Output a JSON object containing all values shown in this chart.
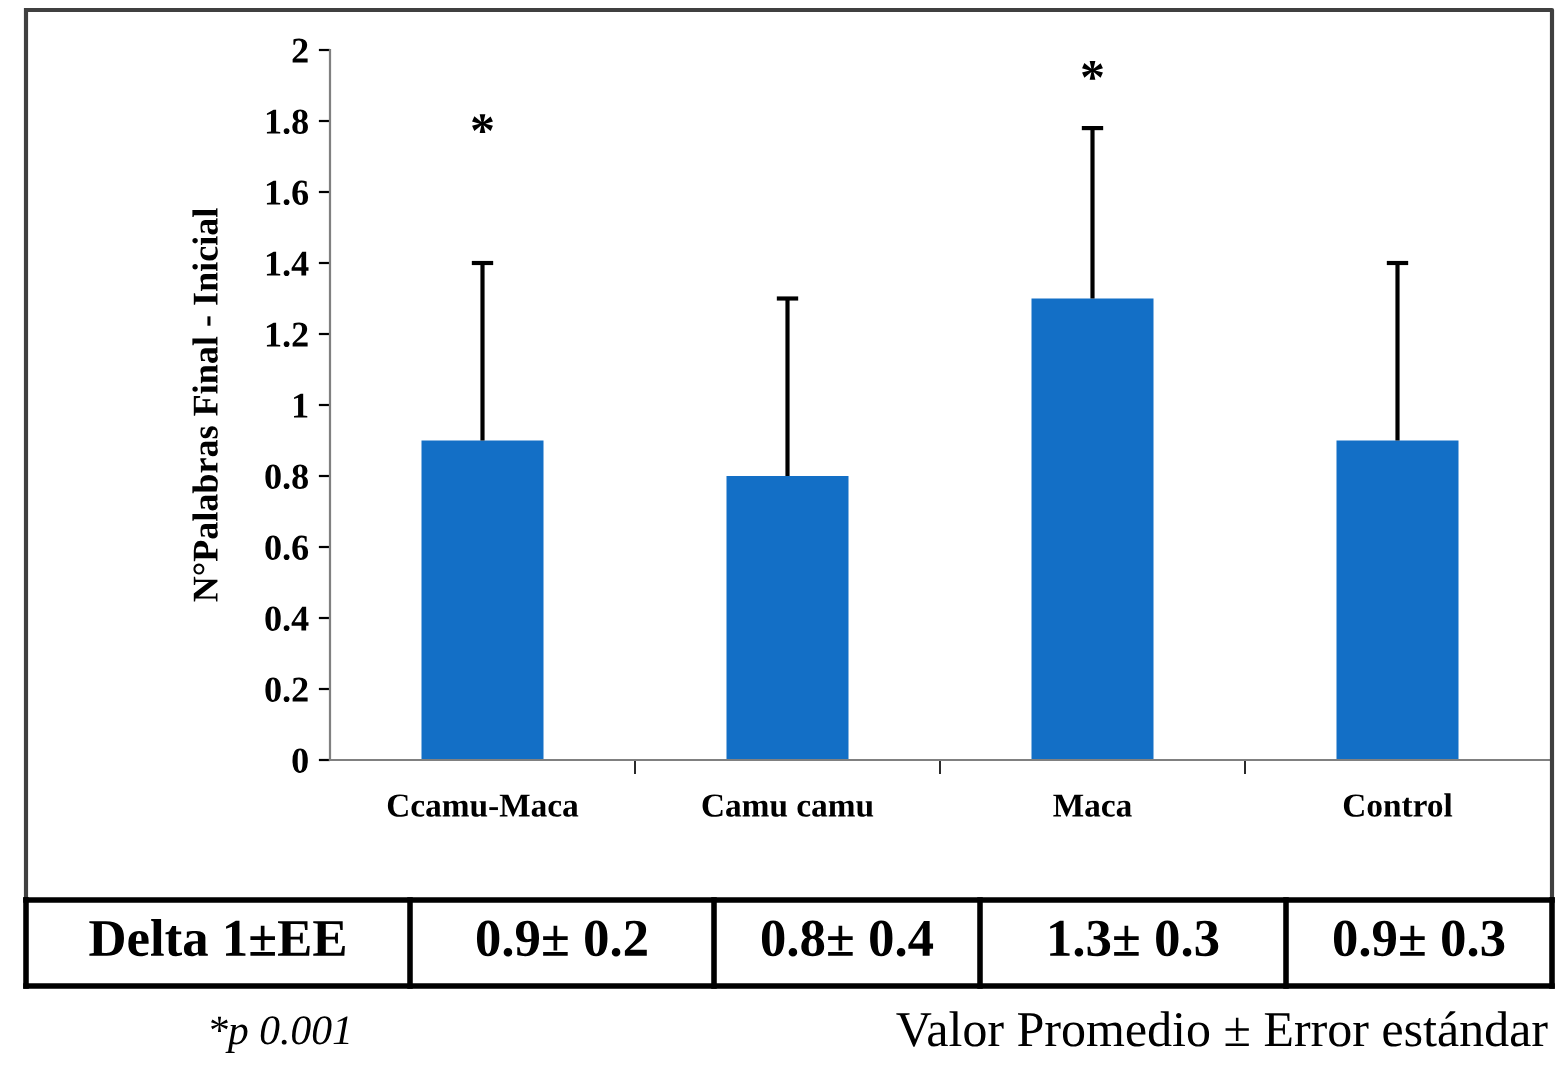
{
  "chart_data": {
    "type": "bar",
    "ylabel": "N°Palabras Final - Inicial",
    "categories": [
      "Ccamu-Maca",
      "Camu camu",
      "Maca",
      "Control"
    ],
    "values": [
      0.9,
      0.8,
      1.3,
      0.9
    ],
    "color": "#136fc6",
    "errors": [
      [
        0.9,
        1.4
      ],
      [
        0.8,
        1.3
      ],
      [
        1.3,
        1.78
      ],
      [
        0.9,
        1.4
      ]
    ],
    "value_labels": [
      "0.9± 0.2",
      "0.8± 0.4",
      "1.3± 0.3",
      "0.9± 0.3"
    ],
    "ylim": [
      0,
      2
    ],
    "yticks": [
      0,
      0.2,
      0.4,
      0.6,
      0.8,
      1,
      1.2,
      1.4,
      1.6,
      1.8,
      2
    ],
    "grid": false,
    "annotations": [
      "Delta 1±EE",
      "*p 0.001",
      "Valor Promedio ± Error estándar",
      "*",
      "*"
    ]
  }
}
